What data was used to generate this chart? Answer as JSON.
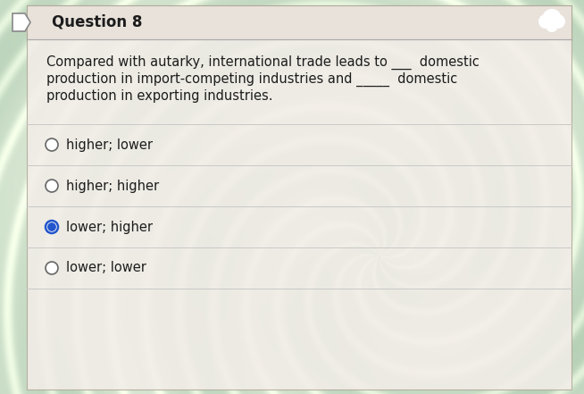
{
  "title": "Question 8",
  "question_lines": [
    "Compared with autarky, international trade leads to ___  domestic",
    "production in import-competing industries and _____  domestic",
    "production in exporting industries."
  ],
  "options": [
    "higher; lower",
    "higher; higher",
    "lower; higher",
    "lower; lower"
  ],
  "selected_option": 2,
  "bg_swirl_color1": "#b8d4b0",
  "bg_swirl_color2": "#d8e8d0",
  "bg_swirl_color3": "#c0d8c8",
  "card_color": "#f2ede8",
  "card_alpha": 0.88,
  "title_bar_color": "#e8e2da",
  "text_color": "#1c1c1c",
  "title_fontsize": 12,
  "option_fontsize": 10.5,
  "question_fontsize": 10.5,
  "selected_fill": "#2255cc",
  "unselected_stroke": "#666666",
  "divider_color": "#c8c8c8",
  "header_divider_color": "#aaaaaa",
  "card_border_color": "#b0a898"
}
